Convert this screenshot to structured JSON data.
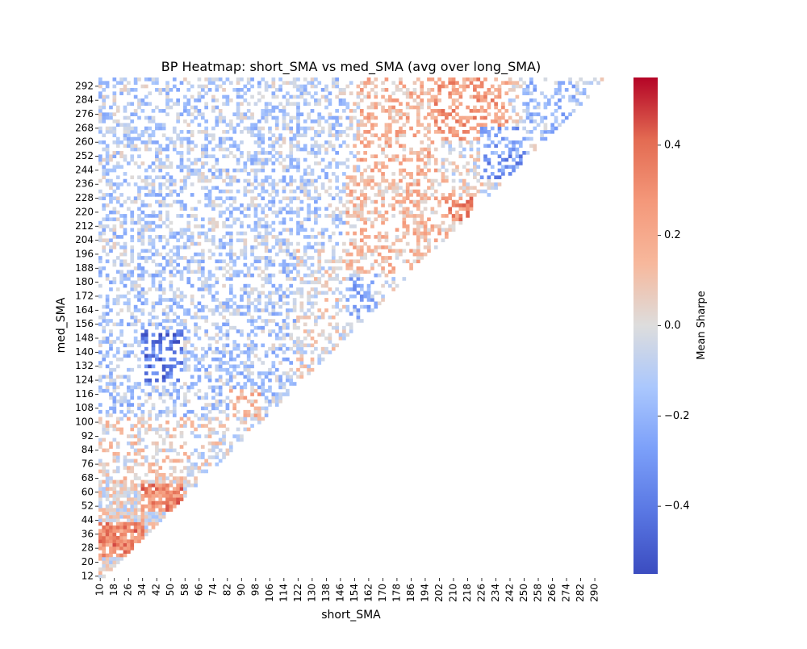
{
  "chart_data": {
    "type": "heatmap",
    "title": "BP Heatmap: short_SMA vs med_SMA (avg over long_SMA)",
    "xlabel": "short_SMA",
    "ylabel": "med_SMA",
    "colorbar_label": "Mean Sharpe",
    "colormap": "coolwarm",
    "color_low": "#3b4cc0",
    "color_mid": "#dddddd",
    "color_high": "#b40426",
    "value_range": [
      -0.55,
      0.55
    ],
    "colorbar_ticks": [
      {
        "value": 0.4,
        "label": "0.4"
      },
      {
        "value": 0.2,
        "label": "0.2"
      },
      {
        "value": 0.0,
        "label": "0.0"
      },
      {
        "value": -0.2,
        "label": "−0.2"
      },
      {
        "value": -0.4,
        "label": "−0.4"
      }
    ],
    "x_range": [
      10,
      294
    ],
    "y_range": [
      12,
      296
    ],
    "x_step": 2,
    "y_step": 2,
    "x_tick_labels": [
      "10",
      "18",
      "26",
      "34",
      "42",
      "50",
      "58",
      "66",
      "74",
      "82",
      "90",
      "98",
      "106",
      "114",
      "122",
      "130",
      "138",
      "146",
      "154",
      "162",
      "170",
      "178",
      "186",
      "194",
      "202",
      "210",
      "218",
      "226",
      "234",
      "242",
      "250",
      "258",
      "266",
      "274",
      "282",
      "290"
    ],
    "y_tick_labels": [
      "292",
      "284",
      "276",
      "268",
      "260",
      "252",
      "244",
      "236",
      "228",
      "220",
      "212",
      "204",
      "196",
      "188",
      "180",
      "172",
      "164",
      "156",
      "148",
      "140",
      "132",
      "124",
      "116",
      "108",
      "100",
      "92",
      "84",
      "76",
      "68",
      "60",
      "52",
      "44",
      "36",
      "28",
      "20",
      "12"
    ],
    "missing": "white (NaN)",
    "value_regions": [
      {
        "short": [
          10,
          34
        ],
        "med": [
          24,
          48
        ],
        "mean_sharpe": 0.3
      },
      {
        "short": [
          32,
          56
        ],
        "med": [
          50,
          66
        ],
        "mean_sharpe": 0.3
      },
      {
        "short": [
          10,
          32
        ],
        "med": [
          44,
          64
        ],
        "mean_sharpe": 0.02
      },
      {
        "short": [
          10,
          60
        ],
        "med": [
          66,
          104
        ],
        "mean_sharpe": 0.05
      },
      {
        "short": [
          10,
          120
        ],
        "med": [
          104,
          200
        ],
        "mean_sharpe": -0.12
      },
      {
        "short": [
          34,
          56
        ],
        "med": [
          124,
          152
        ],
        "mean_sharpe": -0.4
      },
      {
        "short": [
          84,
          100
        ],
        "med": [
          104,
          118
        ],
        "mean_sharpe": 0.15
      },
      {
        "short": [
          10,
          150
        ],
        "med": [
          200,
          296
        ],
        "mean_sharpe": -0.1
      },
      {
        "short": [
          150,
          166
        ],
        "med": [
          160,
          196
        ],
        "mean_sharpe": -0.2
      },
      {
        "short": [
          150,
          210
        ],
        "med": [
          186,
          240
        ],
        "mean_sharpe": 0.12
      },
      {
        "short": [
          158,
          200
        ],
        "med": [
          236,
          296
        ],
        "mean_sharpe": 0.15
      },
      {
        "short": [
          204,
          220
        ],
        "med": [
          216,
          228
        ],
        "mean_sharpe": 0.28
      },
      {
        "short": [
          200,
          240
        ],
        "med": [
          262,
          296
        ],
        "mean_sharpe": 0.25
      },
      {
        "short": [
          226,
          250
        ],
        "med": [
          240,
          268
        ],
        "mean_sharpe": -0.28
      },
      {
        "short": [
          250,
          290
        ],
        "med": [
          262,
          296
        ],
        "mean_sharpe": -0.15
      }
    ]
  }
}
